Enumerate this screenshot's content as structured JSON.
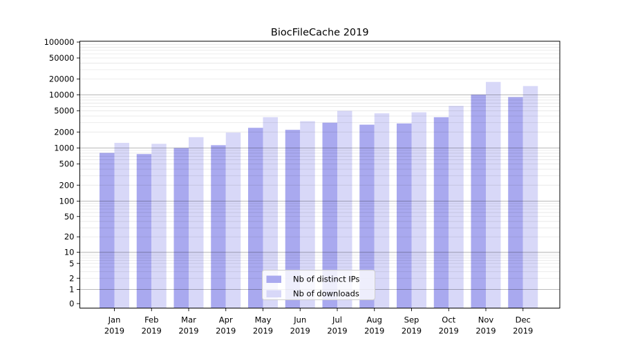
{
  "chart_data": {
    "type": "bar",
    "title": "BiocFileCache 2019",
    "categories": [
      "Jan",
      "Feb",
      "Mar",
      "Apr",
      "May",
      "Jun",
      "Jul",
      "Aug",
      "Sep",
      "Oct",
      "Nov",
      "Dec"
    ],
    "x_year_label": "2019",
    "series": [
      {
        "name": "Nb of distinct IPs",
        "color": "#a9a9ef",
        "values": [
          810,
          770,
          1000,
          1130,
          2400,
          2200,
          3000,
          2750,
          2900,
          3800,
          10100,
          9100
        ]
      },
      {
        "name": "Nb of downloads",
        "color": "#d8d8f8",
        "values": [
          1250,
          1200,
          1600,
          1950,
          3800,
          3200,
          5000,
          4500,
          4700,
          6200,
          17600,
          14700
        ]
      }
    ],
    "yticks": [
      0,
      1,
      2,
      5,
      10,
      20,
      50,
      100,
      200,
      500,
      1000,
      2000,
      5000,
      10000,
      20000,
      50000,
      100000
    ],
    "yscale": "symlog",
    "ylim": [
      0,
      100000
    ],
    "grid": true,
    "legend_position": "lower-center"
  },
  "colors": {
    "background": "#ffffff",
    "bar_distinct_ips": "#a9a9ef",
    "bar_downloads": "#d8d8f8",
    "grid_major": "rgba(0,0,0,0.28)",
    "grid_minor": "rgba(0,0,0,0.10)",
    "axis": "#000000",
    "text": "#000000",
    "legend_border": "#cccccc",
    "legend_background": "rgba(255,255,255,0.8)"
  }
}
